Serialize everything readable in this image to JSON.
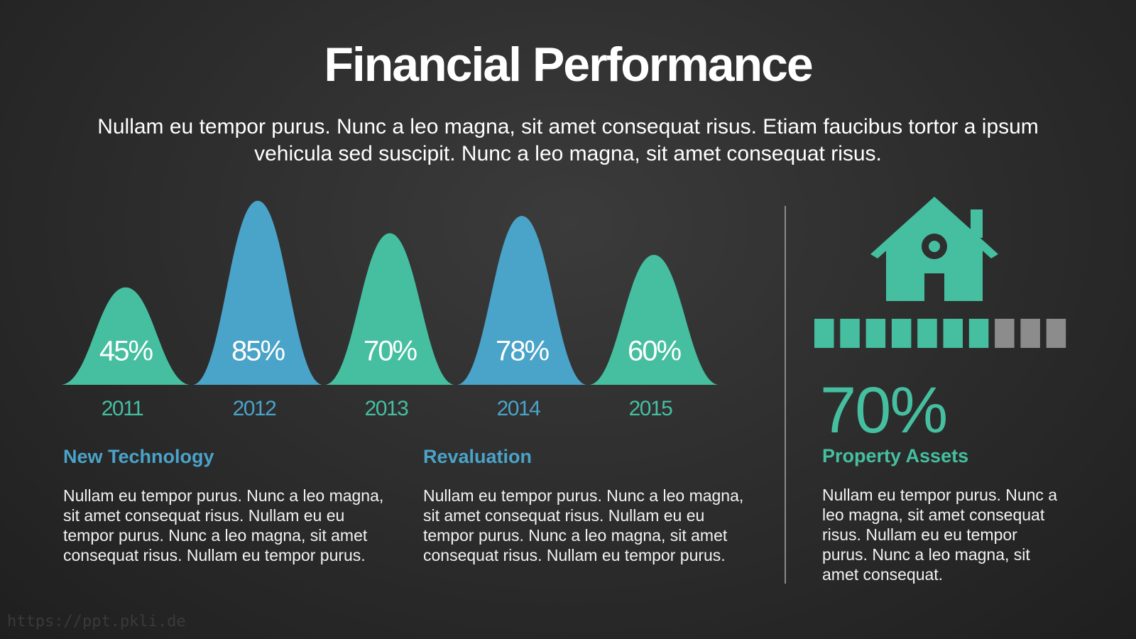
{
  "header": {
    "title": "Financial Performance",
    "subtitle": "Nullam eu tempor purus. Nunc a leo magna, sit amet consequat risus. Etiam faucibus tortor a ipsum vehicula sed suscipit. Nunc a leo magna, sit amet consequat risus."
  },
  "chart_data": {
    "type": "bar",
    "categories": [
      "2011",
      "2012",
      "2013",
      "2014",
      "2015"
    ],
    "values": [
      45,
      85,
      70,
      78,
      60
    ],
    "value_labels": [
      "45%",
      "85%",
      "70%",
      "78%",
      "60%"
    ],
    "colors": [
      "#45bfa0",
      "#4aa3c8",
      "#45bfa0",
      "#4aa3c8",
      "#45bfa0"
    ]
  },
  "columns": [
    {
      "heading": "New Technology",
      "text": "Nullam eu tempor purus. Nunc a leo magna, sit amet consequat risus. Nullam eu eu tempor purus. Nunc a leo magna, sit amet consequat risus. Nullam eu tempor purus."
    },
    {
      "heading": "Revaluation",
      "text": "Nullam eu tempor purus. Nunc a leo magna, sit amet consequat risus. Nullam eu eu tempor purus. Nunc a leo magna, sit amet consequat risus. Nullam eu tempor purus."
    }
  ],
  "property": {
    "value": 70,
    "value_label": "70%",
    "heading": "Property Assets",
    "text": "Nullam eu tempor purus. Nunc a leo magna, sit amet consequat risus. Nullam eu eu tempor purus. Nunc a leo magna, sit amet consequat."
  },
  "footer": {
    "watermark": "https://ppt.pkli.de"
  }
}
